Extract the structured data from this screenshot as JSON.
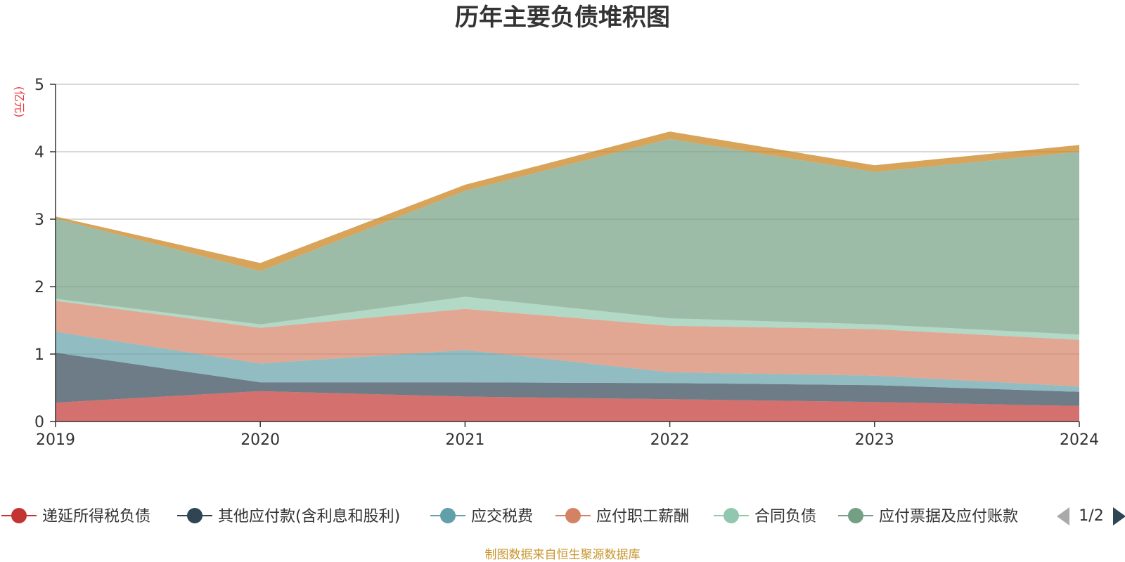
{
  "chart_data": {
    "type": "area",
    "stacked": true,
    "title": "历年主要负债堆积图",
    "unit": "(亿元)",
    "source_note": "制图数据来自恒生聚源数据库",
    "categories": [
      "2019",
      "2020",
      "2021",
      "2022",
      "2023",
      "2024"
    ],
    "ylim": [
      0,
      5
    ],
    "yticks": [
      0,
      1,
      2,
      3,
      4,
      5
    ],
    "grid": true,
    "legend_position": "bottom",
    "legend_page": "1/2",
    "series": [
      {
        "name": "递延所得税负债",
        "color": "#c23531",
        "legend_color": "#c23531",
        "values": [
          0.28,
          0.45,
          0.37,
          0.33,
          0.29,
          0.23
        ]
      },
      {
        "name": "其他应付款(含利息和股利)",
        "color": "#2f4554",
        "legend_color": "#2f4554",
        "values": [
          0.74,
          0.13,
          0.21,
          0.24,
          0.25,
          0.21
        ]
      },
      {
        "name": "应交税费",
        "color": "#61a0a8",
        "legend_color": "#61a0a8",
        "values": [
          0.31,
          0.28,
          0.48,
          0.16,
          0.14,
          0.08
        ]
      },
      {
        "name": "应付职工薪酬",
        "color": "#d48265",
        "legend_color": "#d48265",
        "values": [
          0.46,
          0.53,
          0.61,
          0.69,
          0.69,
          0.69
        ]
      },
      {
        "name": "合同负债",
        "color": "#91c7ae",
        "legend_color": "#91c7ae",
        "values": [
          0.03,
          0.05,
          0.18,
          0.11,
          0.07,
          0.08
        ]
      },
      {
        "name": "应付票据及应付账款",
        "color": "#749f83",
        "legend_color": "#749f83",
        "values": [
          1.19,
          0.79,
          1.57,
          2.66,
          2.26,
          2.71
        ]
      },
      {
        "name": "",
        "color": "#ca8622",
        "legend_color": "#ca8622",
        "values": [
          0.03,
          0.12,
          0.09,
          0.11,
          0.1,
          0.1
        ]
      }
    ]
  }
}
